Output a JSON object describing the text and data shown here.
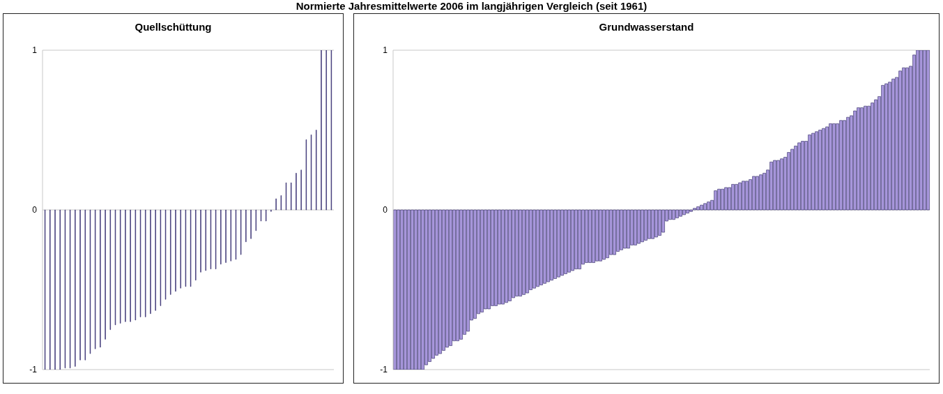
{
  "chart_data": [
    {
      "type": "bar",
      "title": "Quellschüttung",
      "annotations": [
        "Normierte Jahresmittelwerte 2006 im langjährigen Vergleich (seit 1961)"
      ],
      "color": "#4b3f9e",
      "ylim": [
        -1,
        1
      ],
      "yticks": [
        -1,
        0,
        1
      ],
      "grid": "y",
      "tick_labels": "y",
      "categories": [
        null,
        null,
        null,
        null,
        null,
        null,
        null,
        null,
        null,
        null,
        null,
        null,
        null,
        null,
        null,
        null,
        null,
        null,
        null,
        null,
        null,
        null,
        null,
        null,
        null,
        null,
        null,
        null,
        null,
        null,
        null,
        null,
        null,
        null,
        null,
        null,
        null,
        null,
        null,
        null,
        null,
        null,
        null,
        null,
        null,
        null,
        null,
        null,
        null,
        null,
        null,
        null,
        null,
        null,
        null,
        null,
        null,
        null
      ],
      "values": [
        -1,
        -1,
        -1,
        -1,
        -0.99,
        -0.99,
        -0.98,
        -0.94,
        -0.94,
        -0.9,
        -0.87,
        -0.86,
        -0.81,
        -0.75,
        -0.72,
        -0.71,
        -0.7,
        -0.7,
        -0.69,
        -0.67,
        -0.67,
        -0.65,
        -0.63,
        -0.6,
        -0.56,
        -0.53,
        -0.51,
        -0.49,
        -0.48,
        -0.48,
        -0.44,
        -0.39,
        -0.38,
        -0.37,
        -0.37,
        -0.34,
        -0.33,
        -0.32,
        -0.31,
        -0.28,
        -0.2,
        -0.18,
        -0.13,
        -0.07,
        -0.07,
        -0.01,
        0.07,
        0.09,
        0.17,
        0.17,
        0.23,
        0.25,
        0.44,
        0.47,
        0.5,
        1,
        1,
        1
      ]
    },
    {
      "type": "bar",
      "title": "Grundwasserstand",
      "color": "#a897dc",
      "ylim": [
        -1,
        1
      ],
      "yticks": [
        -1,
        0,
        1
      ],
      "grid": "y",
      "tick_labels": "y",
      "categories": [
        null,
        null,
        null,
        null,
        null,
        null,
        null,
        null,
        null,
        null,
        null,
        null,
        null,
        null,
        null,
        null,
        null,
        null,
        null,
        null,
        null,
        null,
        null,
        null,
        null,
        null,
        null,
        null,
        null,
        null,
        null,
        null,
        null,
        null,
        null,
        null,
        null,
        null,
        null,
        null,
        null,
        null,
        null,
        null,
        null,
        null,
        null,
        null,
        null,
        null,
        null,
        null,
        null,
        null,
        null,
        null,
        null,
        null,
        null,
        null,
        null,
        null,
        null,
        null,
        null,
        null,
        null,
        null,
        null,
        null,
        null,
        null,
        null,
        null,
        null,
        null,
        null,
        null,
        null,
        null,
        null,
        null,
        null,
        null,
        null,
        null,
        null,
        null,
        null,
        null,
        null,
        null,
        null,
        null,
        null,
        null,
        null,
        null,
        null,
        null,
        null,
        null,
        null,
        null,
        null,
        null,
        null,
        null,
        null,
        null,
        null,
        null,
        null,
        null,
        null,
        null,
        null,
        null,
        null,
        null,
        null,
        null,
        null,
        null,
        null,
        null,
        null,
        null,
        null,
        null,
        null,
        null,
        null,
        null,
        null,
        null,
        null,
        null,
        null,
        null,
        null,
        null,
        null,
        null,
        null,
        null,
        null,
        null,
        null,
        null,
        null,
        null,
        null,
        null
      ],
      "values": [
        -1,
        -1,
        -1,
        -1,
        -1,
        -1,
        -1,
        -1,
        -1,
        -0.97,
        -0.95,
        -0.93,
        -0.91,
        -0.9,
        -0.88,
        -0.86,
        -0.85,
        -0.82,
        -0.82,
        -0.81,
        -0.78,
        -0.76,
        -0.69,
        -0.68,
        -0.65,
        -0.64,
        -0.62,
        -0.62,
        -0.6,
        -0.6,
        -0.59,
        -0.59,
        -0.58,
        -0.57,
        -0.55,
        -0.54,
        -0.54,
        -0.53,
        -0.52,
        -0.5,
        -0.49,
        -0.48,
        -0.47,
        -0.46,
        -0.45,
        -0.44,
        -0.43,
        -0.42,
        -0.41,
        -0.4,
        -0.39,
        -0.38,
        -0.37,
        -0.37,
        -0.34,
        -0.33,
        -0.33,
        -0.33,
        -0.32,
        -0.32,
        -0.31,
        -0.3,
        -0.28,
        -0.28,
        -0.26,
        -0.25,
        -0.24,
        -0.24,
        -0.22,
        -0.22,
        -0.21,
        -0.2,
        -0.19,
        -0.18,
        -0.18,
        -0.17,
        -0.16,
        -0.14,
        -0.07,
        -0.06,
        -0.06,
        -0.05,
        -0.04,
        -0.03,
        -0.02,
        -0.01,
        0.01,
        0.02,
        0.03,
        0.04,
        0.05,
        0.06,
        0.12,
        0.13,
        0.13,
        0.14,
        0.14,
        0.16,
        0.16,
        0.17,
        0.18,
        0.18,
        0.19,
        0.21,
        0.21,
        0.22,
        0.23,
        0.25,
        0.3,
        0.31,
        0.31,
        0.32,
        0.33,
        0.36,
        0.38,
        0.4,
        0.42,
        0.43,
        0.43,
        0.47,
        0.48,
        0.49,
        0.5,
        0.51,
        0.52,
        0.54,
        0.54,
        0.54,
        0.56,
        0.56,
        0.58,
        0.59,
        0.62,
        0.64,
        0.64,
        0.65,
        0.65,
        0.67,
        0.69,
        0.71,
        0.78,
        0.79,
        0.8,
        0.82,
        0.83,
        0.87,
        0.89,
        0.89,
        0.9,
        0.97,
        1,
        1,
        1,
        1
      ]
    }
  ]
}
